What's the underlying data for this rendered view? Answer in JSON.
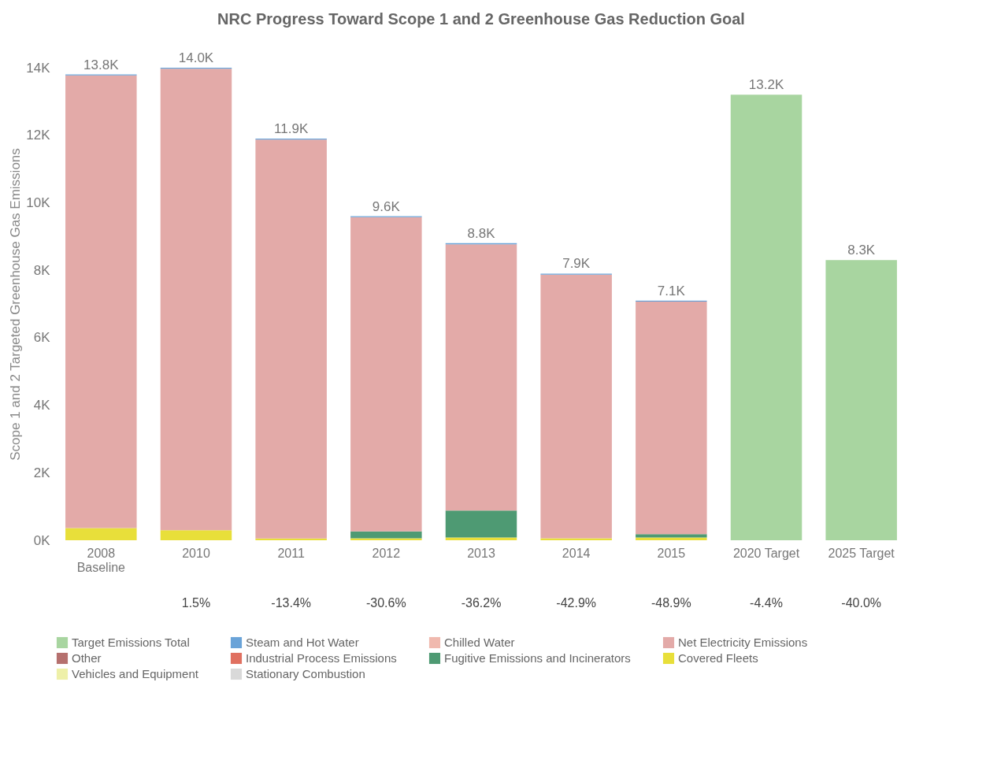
{
  "chart_data": {
    "type": "bar",
    "stacked": true,
    "title": "NRC Progress Toward Scope 1 and 2 Greenhouse Gas Reduction Goal",
    "ylabel": "Scope 1 and 2 Targeted Greenhouse Gas Emissions",
    "categories": [
      "2008\nBaseline",
      "2010",
      "2011",
      "2012",
      "2013",
      "2014",
      "2015",
      "2020 Target",
      "2025 Target"
    ],
    "series": [
      {
        "name": "Stationary Combustion",
        "color": "#d9d9d9",
        "values": [
          null,
          null,
          null,
          null,
          null,
          null,
          null,
          null,
          null
        ]
      },
      {
        "name": "Vehicles and Equipment",
        "color": "#eef0a8",
        "values": [
          null,
          null,
          null,
          null,
          null,
          null,
          null,
          null,
          null
        ]
      },
      {
        "name": "Covered Fleets",
        "color": "#e8df3a",
        "values": [
          360,
          300,
          50,
          60,
          80,
          60,
          80,
          null,
          null
        ]
      },
      {
        "name": "Fugitive Emissions and Incinerators",
        "color": "#4e9a73",
        "values": [
          null,
          null,
          null,
          200,
          800,
          null,
          100,
          null,
          null
        ]
      },
      {
        "name": "Industrial Process Emissions",
        "color": "#e07060",
        "values": [
          null,
          null,
          null,
          null,
          null,
          null,
          null,
          null,
          null
        ]
      },
      {
        "name": "Other",
        "color": "#b5706e",
        "values": [
          null,
          null,
          null,
          null,
          null,
          null,
          null,
          null,
          null
        ]
      },
      {
        "name": "Net Electricity Emissions",
        "color": "#e3aaa8",
        "values": [
          13410,
          13670,
          11820,
          9310,
          7890,
          7810,
          6890,
          null,
          null
        ]
      },
      {
        "name": "Chilled Water",
        "color": "#f0b9ae",
        "values": [
          null,
          null,
          null,
          null,
          null,
          null,
          null,
          null,
          null
        ]
      },
      {
        "name": "Steam and Hot Water",
        "color": "#6aa3d8",
        "values": [
          30,
          30,
          30,
          30,
          30,
          30,
          30,
          null,
          null
        ]
      },
      {
        "name": "Target Emissions Total",
        "color": "#a8d5a0",
        "values": [
          null,
          null,
          null,
          null,
          null,
          null,
          null,
          13200,
          8300
        ]
      }
    ],
    "totals": [
      "13.8K",
      "14.0K",
      "11.9K",
      "9.6K",
      "8.8K",
      "7.9K",
      "7.1K",
      "13.2K",
      "8.3K"
    ],
    "ylim": [
      0,
      14000
    ],
    "yticks": [
      {
        "value": 0,
        "label": "0K"
      },
      {
        "value": 2000,
        "label": "2K"
      },
      {
        "value": 4000,
        "label": "4K"
      },
      {
        "value": 6000,
        "label": "6K"
      },
      {
        "value": 8000,
        "label": "8K"
      },
      {
        "value": 10000,
        "label": "10K"
      },
      {
        "value": 12000,
        "label": "12K"
      },
      {
        "value": 14000,
        "label": "14K"
      }
    ],
    "annotations": [
      "1.5%",
      "-13.4%",
      "-30.6%",
      "-36.2%",
      "-42.9%",
      "-48.9%",
      "-4.4%",
      "-40.0%"
    ],
    "grid": false,
    "legend": "bottom"
  }
}
